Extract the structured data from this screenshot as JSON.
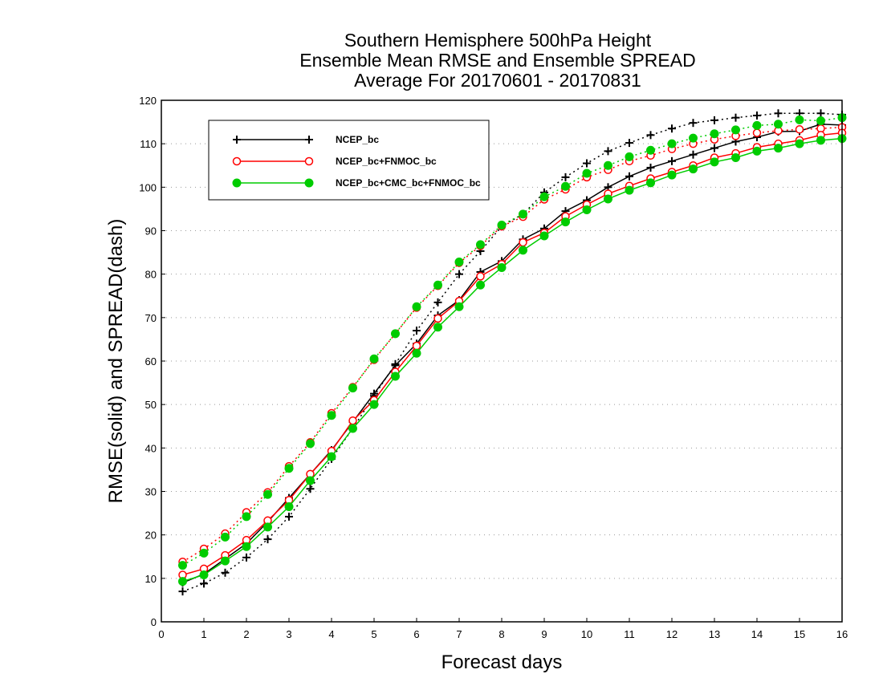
{
  "chart_data": {
    "type": "line",
    "title_lines": [
      "Southern Hemisphere 500hPa Height",
      "Ensemble Mean RMSE and Ensemble SPREAD",
      "Average For 20170601 - 20170831"
    ],
    "xlabel": "Forecast days",
    "ylabel": "RMSE(solid) and SPREAD(dash)",
    "xlim": [
      0,
      16
    ],
    "ylim": [
      0,
      120
    ],
    "xticks": [
      0,
      1,
      2,
      3,
      4,
      5,
      6,
      7,
      8,
      9,
      10,
      11,
      12,
      13,
      14,
      15,
      16
    ],
    "yticks": [
      0,
      10,
      20,
      30,
      40,
      50,
      60,
      70,
      80,
      90,
      100,
      110,
      120
    ],
    "grid": true,
    "legend_position": "top-left",
    "x": [
      0.5,
      1,
      1.5,
      2,
      2.5,
      3,
      3.5,
      4,
      4.5,
      5,
      5.5,
      6,
      6.5,
      7,
      7.5,
      8,
      8.5,
      9,
      9.5,
      10,
      10.5,
      11,
      11.5,
      12,
      12.5,
      13,
      13.5,
      14,
      14.5,
      15,
      15.5,
      16
    ],
    "series": [
      {
        "name": "NCEP_bc",
        "color": "#000000",
        "marker": "plus",
        "rmse": [
          9.0,
          11.0,
          14.5,
          18.0,
          23.0,
          28.5,
          34.0,
          39.5,
          46.0,
          52.5,
          59.0,
          64.0,
          70.5,
          74.0,
          80.5,
          83.0,
          88.0,
          90.5,
          94.5,
          97.0,
          100.0,
          102.5,
          104.5,
          106.0,
          107.5,
          109.0,
          110.5,
          111.5,
          112.8,
          112.9,
          114.5,
          114.3
        ],
        "spread": [
          7.0,
          8.8,
          11.3,
          14.8,
          19.0,
          24.2,
          30.6,
          37.5,
          44.5,
          52.0,
          59.3,
          67.0,
          73.5,
          80.0,
          85.3,
          91.0,
          93.8,
          98.8,
          102.3,
          105.5,
          108.3,
          110.2,
          112.0,
          113.5,
          114.8,
          115.4,
          116.0,
          116.5,
          117.0,
          117.0,
          117.0,
          116.7
        ]
      },
      {
        "name": "NCEP_bc+FNMOC_bc",
        "color": "#ff0000",
        "marker": "circle-open",
        "rmse": [
          10.8,
          12.2,
          15.3,
          18.8,
          23.3,
          28.0,
          34.0,
          39.3,
          46.3,
          51.0,
          57.5,
          63.5,
          69.8,
          73.8,
          79.5,
          82.3,
          87.3,
          89.5,
          93.3,
          96.0,
          98.5,
          100.3,
          102.0,
          103.5,
          105.0,
          106.8,
          107.8,
          109.2,
          110.0,
          110.8,
          112.0,
          112.5
        ],
        "spread": [
          13.8,
          16.8,
          20.3,
          25.2,
          29.8,
          35.8,
          41.3,
          48.0,
          54.0,
          60.3,
          66.3,
          72.3,
          77.3,
          82.6,
          86.5,
          91.0,
          93.2,
          97.2,
          99.5,
          102.3,
          104.0,
          106.0,
          107.3,
          108.8,
          110.0,
          111.0,
          111.8,
          112.5,
          113.0,
          113.3,
          113.5,
          113.8
        ]
      },
      {
        "name": "NCEP_bc+CMC_bc+FNMOC_bc",
        "color": "#00cc00",
        "marker": "circle-filled",
        "rmse": [
          9.3,
          10.8,
          14.0,
          17.3,
          21.8,
          26.5,
          32.5,
          38.0,
          44.5,
          50.0,
          56.5,
          61.8,
          67.8,
          72.5,
          77.5,
          81.5,
          85.5,
          88.8,
          92.0,
          94.8,
          97.3,
          99.3,
          101.0,
          102.8,
          104.2,
          105.8,
          106.8,
          108.3,
          109.0,
          110.0,
          110.8,
          111.2
        ],
        "spread": [
          13.0,
          15.8,
          19.5,
          24.2,
          29.3,
          35.3,
          41.0,
          47.5,
          53.8,
          60.5,
          66.3,
          72.5,
          77.5,
          82.8,
          86.8,
          91.3,
          93.8,
          97.8,
          100.2,
          103.2,
          105.0,
          107.0,
          108.5,
          110.0,
          111.3,
          112.3,
          113.2,
          114.2,
          114.5,
          115.5,
          115.3,
          116.0
        ]
      }
    ]
  }
}
